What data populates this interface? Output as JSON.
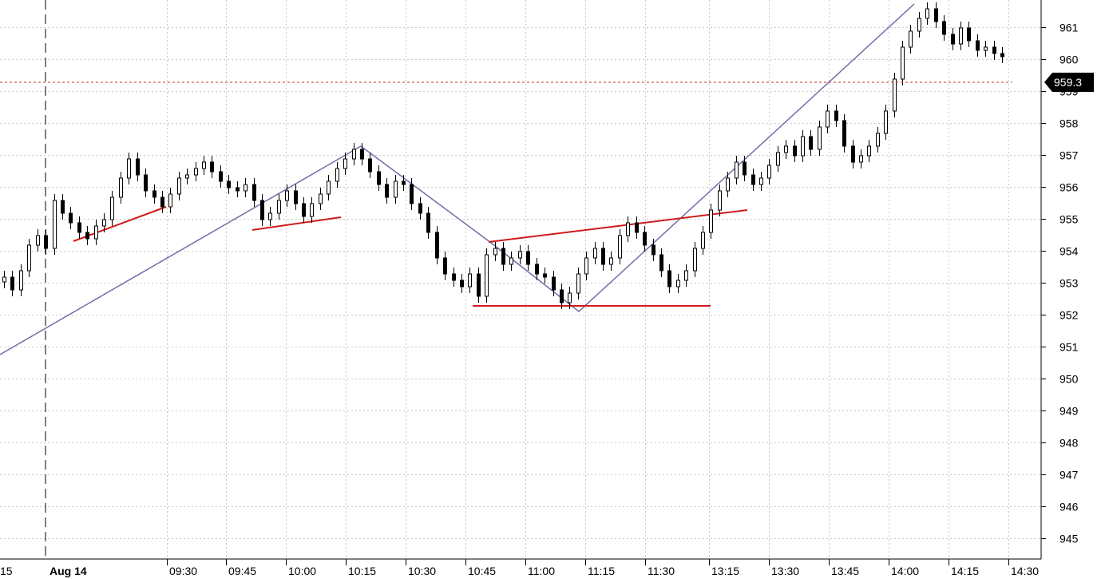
{
  "chart_data": {
    "type": "candlestick",
    "title": "",
    "xlabel": "",
    "ylabel": "",
    "ylim": [
      944.3,
      962.7
    ],
    "y_ticks": [
      945,
      946,
      947,
      948,
      949,
      950,
      951,
      952,
      953,
      954,
      955,
      956,
      957,
      958,
      959,
      960,
      961
    ],
    "x_tick_labels": [
      "15",
      "Aug 14",
      "09:30",
      "09:45",
      "10:00",
      "10:15",
      "10:30",
      "10:45",
      "11:00",
      "11:15",
      "11:30",
      "13:15",
      "13:30",
      "13:45",
      "14:00",
      "14:15",
      "14:30"
    ],
    "date_label": "Aug 14",
    "last_price": "959.3",
    "grid": true,
    "colors": {
      "up_body": "#ffffff",
      "down_body": "#000000",
      "wick": "#000000",
      "trendline_blue": "#6f6fa8",
      "trendline_red": "#d11a1a",
      "last_price_line": "#c0392b",
      "price_tag_bg": "#000000"
    },
    "candles_close": [
      953.2,
      952.8,
      953.4,
      954.2,
      954.5,
      954.1,
      955.6,
      955.2,
      954.9,
      954.6,
      954.4,
      954.8,
      955.0,
      955.7,
      956.3,
      956.9,
      956.4,
      955.9,
      955.7,
      955.4,
      955.8,
      956.3,
      956.4,
      956.6,
      956.8,
      956.5,
      956.2,
      956.0,
      955.9,
      956.1,
      955.6,
      955.0,
      955.2,
      955.6,
      955.9,
      955.5,
      955.1,
      955.5,
      955.8,
      956.2,
      956.6,
      956.9,
      957.2,
      956.9,
      956.5,
      956.1,
      955.7,
      956.2,
      956.1,
      955.5,
      955.2,
      954.6,
      953.8,
      953.3,
      953.1,
      952.9,
      953.3,
      952.6,
      953.9,
      954.1,
      953.6,
      953.8,
      954.0,
      953.6,
      953.3,
      953.2,
      952.8,
      952.4,
      952.7,
      953.3,
      953.8,
      954.1,
      953.6,
      953.8,
      954.5,
      954.9,
      954.6,
      954.2,
      953.9,
      953.4,
      952.9,
      953.1,
      953.4,
      954.1,
      954.6,
      955.3,
      955.9,
      956.3,
      956.8,
      956.4,
      956.1,
      956.3,
      956.7,
      957.1,
      957.3,
      957.0,
      957.6,
      957.2,
      957.9,
      958.4,
      958.1,
      957.3,
      956.8,
      957.0,
      957.3,
      957.7,
      958.4,
      959.4,
      960.4,
      960.9,
      961.3,
      961.6,
      961.2,
      960.8,
      960.5,
      961.0,
      960.6,
      960.3,
      960.4,
      960.2,
      960.1
    ]
  }
}
